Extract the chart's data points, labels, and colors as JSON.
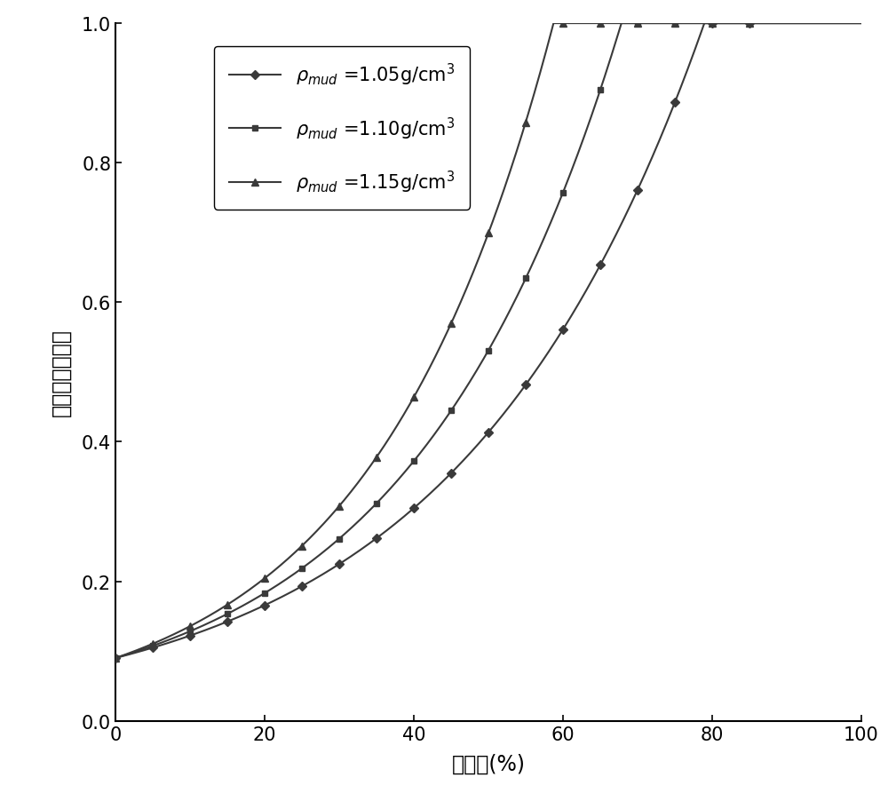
{
  "xlabel": "扩径率(%)",
  "ylabel": "泥浆视几何因子",
  "xlim": [
    0,
    100
  ],
  "ylim": [
    0.0,
    1.0
  ],
  "xticks": [
    0,
    20,
    40,
    60,
    80,
    100
  ],
  "yticks": [
    0.0,
    0.2,
    0.4,
    0.6,
    0.8,
    1.0
  ],
  "G0": 0.09,
  "series": [
    {
      "rho_mud": 1.05,
      "b": 3.05,
      "marker": "D",
      "markersize": 5,
      "label": "$\\rho_{mud}$ =1.05g/cm$^3$"
    },
    {
      "rho_mud": 1.1,
      "b": 3.55,
      "marker": "s",
      "markersize": 5,
      "label": "$\\rho_{mud}$ =1.10g/cm$^3$"
    },
    {
      "rho_mud": 1.15,
      "b": 4.1,
      "marker": "^",
      "markersize": 6,
      "label": "$\\rho_{mud}$ =1.15g/cm$^3$"
    }
  ],
  "color": "#3a3a3a",
  "background_color": "#ffffff",
  "xlabel_fontsize": 17,
  "ylabel_fontsize": 17,
  "tick_fontsize": 15,
  "legend_fontsize": 15,
  "linewidth": 1.5,
  "marker_every_pct": 5
}
